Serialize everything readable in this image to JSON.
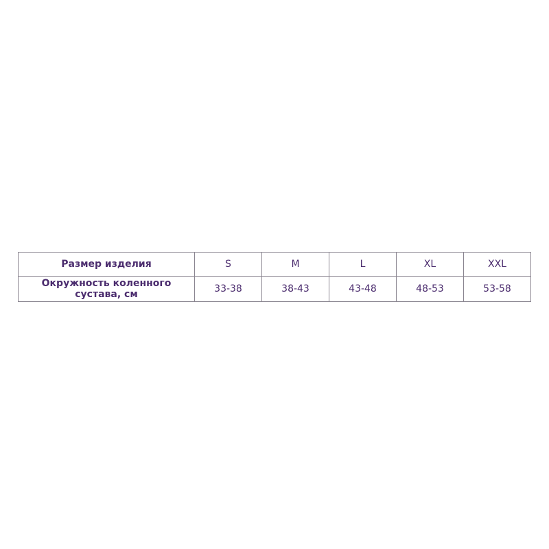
{
  "table": {
    "row_header_size": "Размер изделия",
    "row_header_knee": "Окружность коленного сустава, см",
    "sizes": [
      "S",
      "M",
      "L",
      "XL",
      "XXL"
    ],
    "ranges": [
      "33-38",
      "38-43",
      "43-48",
      "48-53",
      "53-58"
    ]
  },
  "colors": {
    "text": "#4b2c6e",
    "border": "#8a8590"
  }
}
